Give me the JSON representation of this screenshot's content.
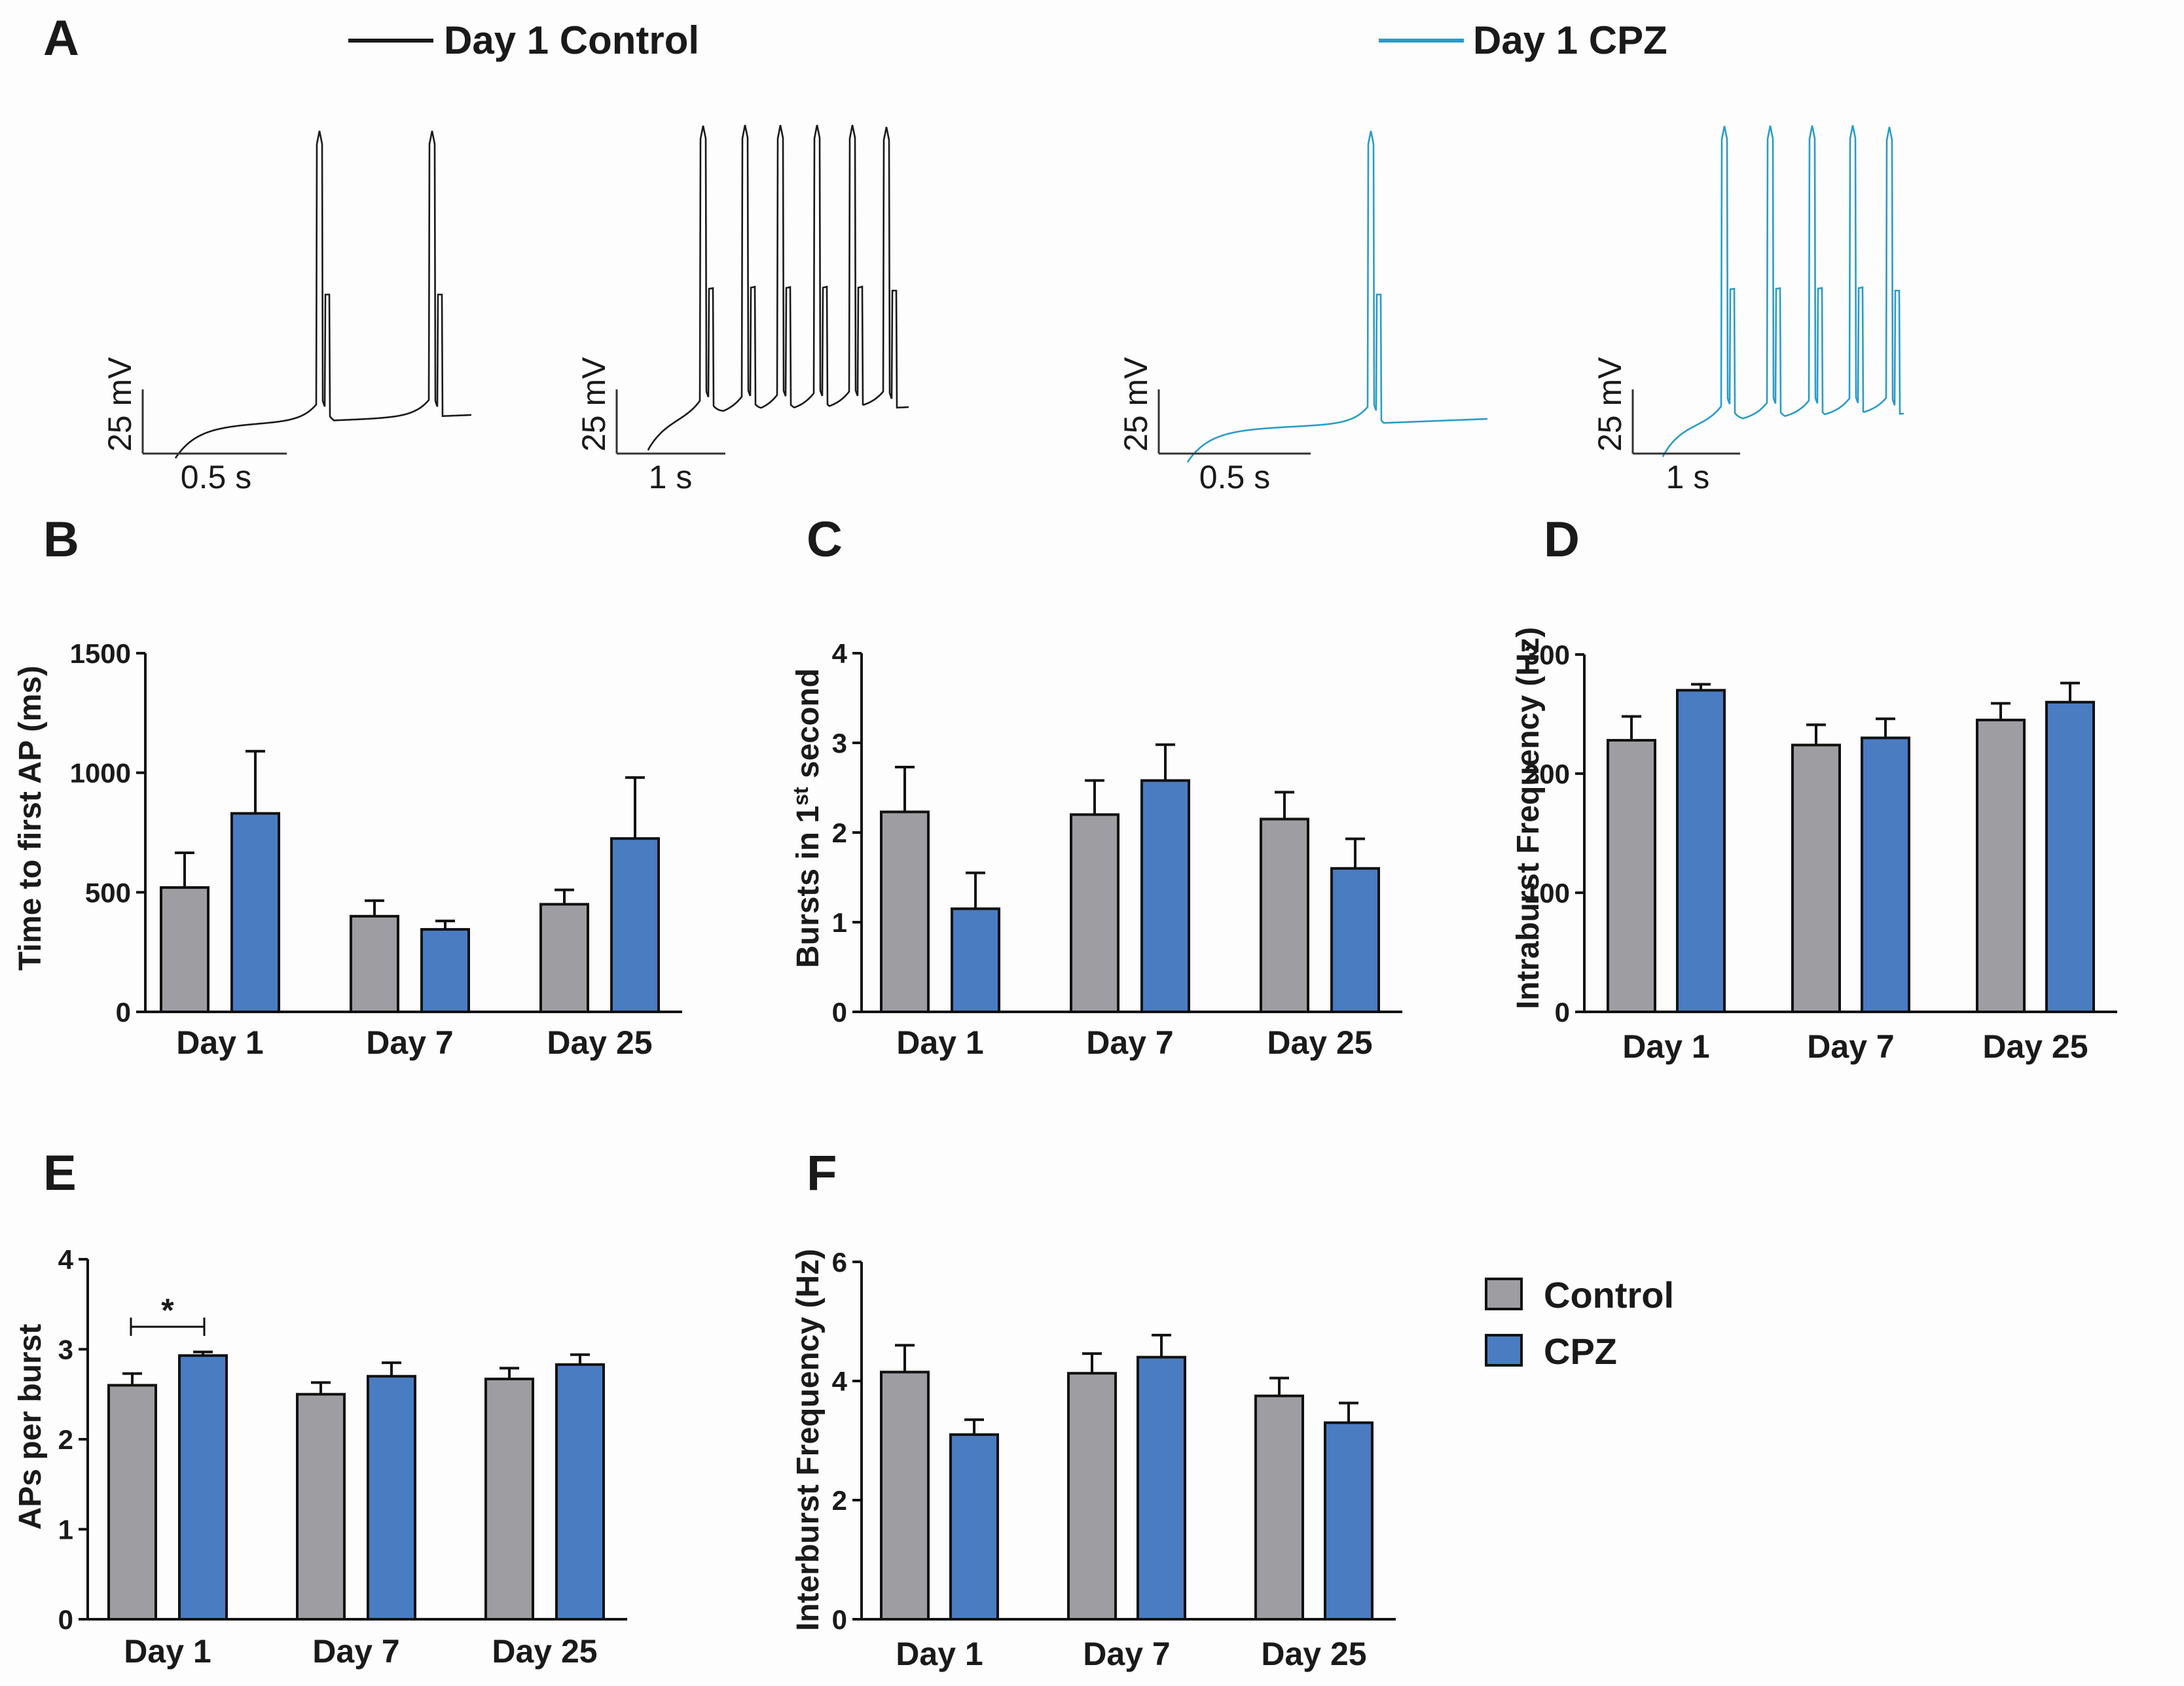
{
  "panel_letters": [
    "A",
    "B",
    "C",
    "D",
    "E",
    "F"
  ],
  "traces": {
    "control_legend": "Day 1 Control",
    "cpz_legend": "Day 1 CPZ",
    "colors": {
      "control": "#1a1a1a",
      "cpz": "#2a9cc8"
    },
    "voltage_scale": "25 mV",
    "time_scales": [
      "0.5 s",
      "1 s",
      "0.5 s",
      "1 s"
    ]
  },
  "legend": {
    "items": [
      {
        "label": "Control",
        "color": "#9e9ea2"
      },
      {
        "label": "CPZ",
        "color": "#4a7cc2"
      }
    ]
  },
  "chart_data": [
    {
      "panel": "B",
      "type": "bar",
      "categories": [
        "Day 1",
        "Day 7",
        "Day 25"
      ],
      "ylabel": "Time to first AP (ms)",
      "ylim": [
        0,
        1500
      ],
      "yticks": [
        0,
        500,
        1000,
        1500
      ],
      "series": [
        {
          "name": "Control",
          "values": [
            520,
            400,
            450
          ],
          "errors": [
            145,
            65,
            60
          ]
        },
        {
          "name": "CPZ",
          "values": [
            830,
            345,
            725
          ],
          "errors": [
            260,
            35,
            255
          ]
        }
      ]
    },
    {
      "panel": "C",
      "type": "bar",
      "categories": [
        "Day 1",
        "Day 7",
        "Day 25"
      ],
      "ylabel_main": "Bursts in 1",
      "ylabel_sup": "st",
      "ylabel_tail": " second",
      "ylim": [
        0,
        4
      ],
      "yticks": [
        0,
        1,
        2,
        3,
        4
      ],
      "series": [
        {
          "name": "Control",
          "values": [
            2.23,
            2.2,
            2.15
          ],
          "errors": [
            0.5,
            0.38,
            0.3
          ]
        },
        {
          "name": "CPZ",
          "values": [
            1.15,
            2.58,
            1.6
          ],
          "errors": [
            0.4,
            0.4,
            0.33
          ]
        }
      ]
    },
    {
      "panel": "D",
      "type": "bar",
      "categories": [
        "Day 1",
        "Day 7",
        "Day 25"
      ],
      "ylabel": "Intraburst Frequency (Hz)",
      "ylim": [
        0,
        300
      ],
      "yticks": [
        0,
        100,
        200,
        300
      ],
      "series": [
        {
          "name": "Control",
          "values": [
            228,
            224,
            245
          ],
          "errors": [
            20,
            17,
            14
          ]
        },
        {
          "name": "CPZ",
          "values": [
            270,
            230,
            260
          ],
          "errors": [
            5,
            16,
            16
          ]
        }
      ]
    },
    {
      "panel": "E",
      "type": "bar",
      "categories": [
        "Day 1",
        "Day 7",
        "Day 25"
      ],
      "ylabel": "APs per burst",
      "ylim": [
        0,
        4
      ],
      "yticks": [
        0,
        1,
        2,
        3,
        4
      ],
      "series": [
        {
          "name": "Control",
          "values": [
            2.6,
            2.5,
            2.67
          ],
          "errors": [
            0.13,
            0.13,
            0.12
          ]
        },
        {
          "name": "CPZ",
          "values": [
            2.93,
            2.7,
            2.83
          ],
          "errors": [
            0.04,
            0.15,
            0.11
          ]
        }
      ],
      "significance": [
        {
          "category": "Day 1",
          "label": "*"
        }
      ]
    },
    {
      "panel": "F",
      "type": "bar",
      "categories": [
        "Day 1",
        "Day 7",
        "Day 25"
      ],
      "ylabel": "Interburst Frequency (Hz)",
      "ylim": [
        0,
        6
      ],
      "yticks": [
        0,
        2,
        4,
        6
      ],
      "series": [
        {
          "name": "Control",
          "values": [
            4.15,
            4.13,
            3.75
          ],
          "errors": [
            0.45,
            0.33,
            0.3
          ]
        },
        {
          "name": "CPZ",
          "values": [
            3.1,
            4.4,
            3.3
          ],
          "errors": [
            0.25,
            0.37,
            0.33
          ]
        }
      ]
    }
  ]
}
